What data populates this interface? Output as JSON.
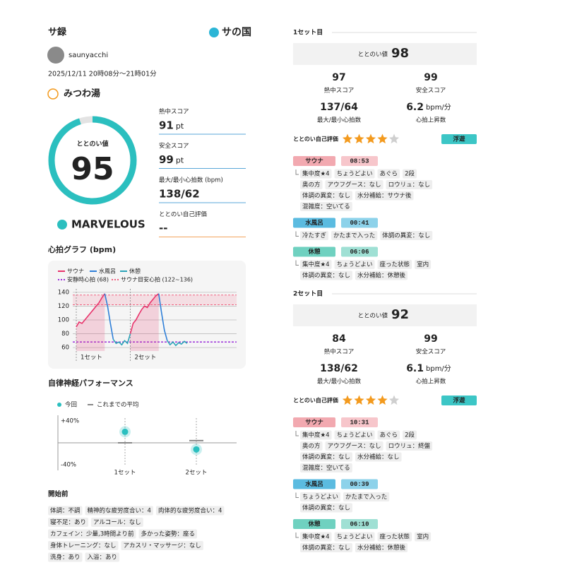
{
  "header": {
    "title": "サ録",
    "brand": "サの国"
  },
  "user": {
    "name": "saunyacchi",
    "datetime": "2025/12/11 20時08分～21時01分",
    "facility": "みつわ湯"
  },
  "summary": {
    "score_label": "ととのい値",
    "score": 95,
    "rating": "MARVELOUS",
    "metrics": [
      {
        "label": "熱中スコア",
        "value": 91,
        "unit": "pt"
      },
      {
        "label": "安全スコア",
        "value": 99,
        "unit": "pt"
      },
      {
        "label": "最大/最小心拍数 (bpm)",
        "value": "138/62"
      },
      {
        "label": "ととのい自己評価",
        "value": "--"
      }
    ]
  },
  "heart_chart": {
    "type": "line",
    "title": "心拍グラフ (bpm)",
    "series": [
      {
        "name": "サウナ",
        "color": "#e8336b",
        "values": [
          90,
          97,
          95,
          100,
          105,
          110,
          115,
          120,
          125,
          132,
          138,
          null,
          null,
          null,
          null,
          null,
          null,
          null,
          null,
          80,
          95,
          100,
          108,
          115,
          120,
          118,
          125,
          130,
          135,
          138,
          null,
          null,
          null,
          null,
          null,
          null,
          null,
          null,
          null,
          null
        ]
      },
      {
        "name": "水風呂",
        "color": "#2f7fd8",
        "values": [
          null,
          null,
          null,
          null,
          null,
          null,
          null,
          null,
          null,
          null,
          138,
          120,
          95,
          72,
          null,
          null,
          null,
          null,
          null,
          null,
          null,
          null,
          null,
          null,
          null,
          null,
          null,
          null,
          null,
          138,
          110,
          85,
          70,
          null,
          null,
          null,
          null,
          null,
          null,
          null
        ]
      },
      {
        "name": "休憩",
        "color": "#2aa3b8",
        "values": [
          null,
          null,
          null,
          null,
          null,
          null,
          null,
          null,
          null,
          null,
          null,
          null,
          null,
          72,
          66,
          68,
          64,
          70,
          66,
          80,
          null,
          null,
          null,
          null,
          null,
          null,
          null,
          null,
          null,
          null,
          null,
          null,
          70,
          64,
          68,
          63,
          67,
          65,
          69,
          66
        ]
      }
    ],
    "reference_lines": [
      {
        "name": "安静時心拍 (68)",
        "value": 68,
        "color": "#9b30d9"
      },
      {
        "name": "サウナ目安心拍 (122~136)",
        "range": [
          122,
          136
        ],
        "color": "#f0607f"
      }
    ],
    "set_labels": [
      "1セット",
      "2セット"
    ],
    "ylim": [
      55,
      145
    ],
    "yticks": [
      60,
      80,
      100,
      120,
      140
    ],
    "grid": true
  },
  "autonomic_chart": {
    "type": "dot",
    "title": "自律神経パフォーマンス",
    "categories": [
      "1セット",
      "2セット"
    ],
    "series": [
      {
        "name": "今回",
        "color": "#2bbfbf",
        "values": [
          20,
          -12
        ]
      },
      {
        "name": "これまでの平均",
        "color": "#888888",
        "values": [
          0,
          4
        ]
      }
    ],
    "ylim": [
      -50,
      50
    ],
    "yticks": [
      {
        "value": 40,
        "label": "+40%"
      },
      {
        "value": -40,
        "label": "-40%"
      }
    ]
  },
  "pre": {
    "title": "開始前",
    "tags": [
      "体調：不調",
      "精神的な疲労度合い：4",
      "肉体的な疲労度合い：4",
      "寝不足：あり",
      "アルコール：なし",
      "カフェイン：少量,3時間より前",
      "多かった姿勢：座る",
      "身体トレーニング：なし",
      "アカスリ・マッサージ：なし",
      "洗身：あり",
      "入浴：あり"
    ]
  },
  "sets": [
    {
      "title": "1セット目",
      "score_label": "ととのい値",
      "score": 98,
      "stats": [
        {
          "value": 97,
          "label": "熱中スコア"
        },
        {
          "value": 99,
          "label": "安全スコア"
        },
        {
          "value": "137/64",
          "label": "最大/最小心拍数"
        },
        {
          "value": 6.2,
          "unit": "bpm/分",
          "label": "心拍上昇数"
        }
      ],
      "self_rating_label": "ととのい自己評価",
      "stars": 4,
      "feeling": "浮遊",
      "phases": [
        {
          "name": "サウナ",
          "time": "08:53",
          "tags": [
            "集中度★4",
            "ちょうどよい",
            "あぐら",
            "2段",
            "奥の方",
            "アウフグース：なし",
            "ロウリュ：なし",
            "体調の異変：なし",
            "水分補給：サウナ後",
            "混雑度：空いてる"
          ]
        },
        {
          "name": "水風呂",
          "time": "00:41",
          "tags": [
            "冷たすぎ",
            "かたまで入った",
            "体調の異変：なし"
          ]
        },
        {
          "name": "休憩",
          "time": "06:06",
          "tags": [
            "集中度★4",
            "ちょうどよい",
            "座った状態",
            "室内",
            "体調の異変：なし",
            "水分補給：休憩後"
          ]
        }
      ]
    },
    {
      "title": "2セット目",
      "score_label": "ととのい値",
      "score": 92,
      "stats": [
        {
          "value": 84,
          "label": "熱中スコア"
        },
        {
          "value": 99,
          "label": "安全スコア"
        },
        {
          "value": "138/62",
          "label": "最大/最小心拍数"
        },
        {
          "value": 6.1,
          "unit": "bpm/分",
          "label": "心拍上昇数"
        }
      ],
      "self_rating_label": "ととのい自己評価",
      "stars": 4,
      "feeling": "浮遊",
      "phases": [
        {
          "name": "サウナ",
          "time": "10:31",
          "tags": [
            "集中度★4",
            "ちょうどよい",
            "あぐら",
            "2段",
            "奥の方",
            "アウフグース：なし",
            "ロウリュ：終盤",
            "体調の異変：なし",
            "水分補給：なし",
            "混雑度：空いてる"
          ]
        },
        {
          "name": "水風呂",
          "time": "00:39",
          "tags": [
            "ちょうどよい",
            "かたまで入った",
            "体調の異変：なし"
          ]
        },
        {
          "name": "休憩",
          "time": "06:10",
          "tags": [
            "集中度★4",
            "ちょうどよい",
            "座った状態",
            "室内",
            "体調の異変：なし",
            "水分補給：休憩後"
          ]
        }
      ]
    }
  ]
}
